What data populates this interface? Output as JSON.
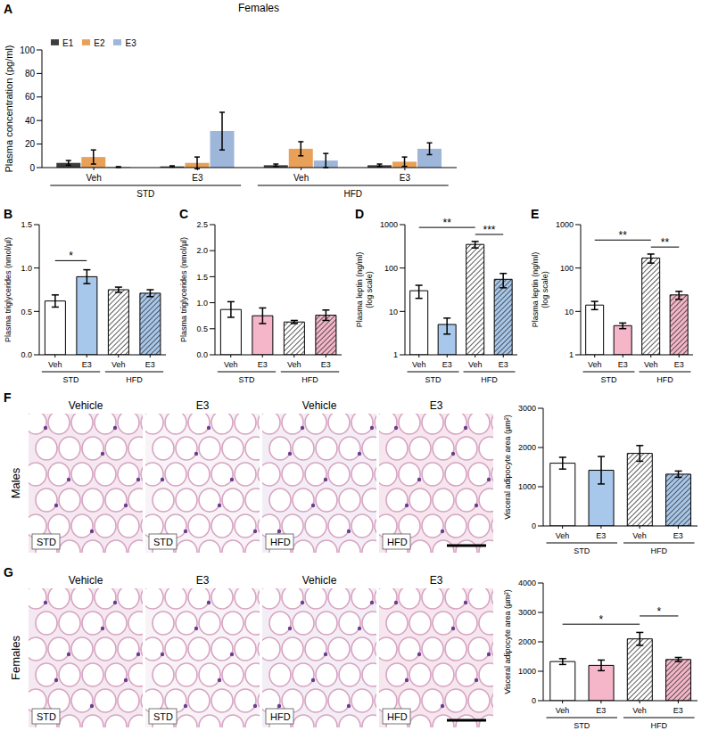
{
  "chart_data": [
    {
      "panel": "A",
      "type": "bar",
      "title": "Females",
      "categories": [
        "Veh",
        "E3",
        "Veh",
        "E3"
      ],
      "group_labels": [
        "STD",
        "STD",
        "HFD",
        "HFD"
      ],
      "y_label": [
        "Plasma concentration (pg/ml)"
      ],
      "ylim": [
        0,
        100
      ],
      "yticks": [
        0,
        20,
        40,
        60,
        80,
        100
      ],
      "legend": "top-left",
      "series": [
        {
          "name": "E1",
          "color": "#3d3d3d",
          "values": [
            4,
            1,
            2,
            2
          ],
          "errors": [
            2,
            0.5,
            1,
            1
          ]
        },
        {
          "name": "E2",
          "color": "#e9a15a",
          "values": [
            9,
            4,
            16,
            5
          ],
          "errors": [
            6,
            5,
            6,
            4
          ]
        },
        {
          "name": "E3",
          "color": "#9db6d9",
          "values": [
            0.5,
            31,
            6,
            16
          ],
          "errors": [
            0.3,
            16,
            6,
            5
          ]
        }
      ]
    },
    {
      "panel": "B",
      "type": "bar",
      "categories": [
        "Veh",
        "E3",
        "Veh",
        "E3"
      ],
      "group_labels": [
        "STD",
        "STD",
        "HFD",
        "HFD"
      ],
      "y_label": [
        "Plasma triglycerides (nmol/µl)"
      ],
      "ylim": [
        0,
        1.5
      ],
      "yticks": [
        {
          "value": 0,
          "label": "0.0"
        },
        0.5,
        {
          "value": 1,
          "label": "1.0"
        },
        1.5
      ],
      "values": [
        0.62,
        0.9,
        0.75,
        0.71
      ],
      "errors": [
        0.07,
        0.08,
        0.03,
        0.04
      ],
      "colors": [
        "#ffffff",
        "#a8c8eb",
        "#ffffff",
        "#a8c8eb"
      ],
      "annotations": [
        {
          "from": 0,
          "to": 1,
          "text": "*"
        }
      ]
    },
    {
      "panel": "C",
      "type": "bar",
      "categories": [
        "Veh",
        "E3",
        "Veh",
        "E3"
      ],
      "group_labels": [
        "STD",
        "STD",
        "HFD",
        "HFD"
      ],
      "y_label": [
        "Plasma triglycerides (nmol/µl)"
      ],
      "ylim": [
        0,
        2.5
      ],
      "yticks": [
        {
          "value": 0,
          "label": "0.0"
        },
        0.5,
        {
          "value": 1,
          "label": "1.0"
        },
        1.5,
        {
          "value": 2,
          "label": "2.0"
        },
        2.5
      ],
      "values": [
        0.87,
        0.75,
        0.63,
        0.76
      ],
      "errors": [
        0.15,
        0.15,
        0.03,
        0.1
      ],
      "colors": [
        "#ffffff",
        "#f4b6c8",
        "#ffffff",
        "#f4b6c8"
      ],
      "annotations": []
    },
    {
      "panel": "D",
      "type": "bar",
      "categories": [
        "Veh",
        "E3",
        "Veh",
        "E3"
      ],
      "group_labels": [
        "STD",
        "STD",
        "HFD",
        "HFD"
      ],
      "y_label": [
        "Plasma leptin (ng/ml)",
        "(log scale)"
      ],
      "log": "y",
      "ylim": [
        1,
        1000
      ],
      "yticks": [
        1,
        10,
        100,
        1000
      ],
      "values": [
        30,
        5,
        350,
        55
      ],
      "errors": [
        10,
        2,
        60,
        20
      ],
      "colors": [
        "#ffffff",
        "#a8c8eb",
        "#ffffff",
        "#a8c8eb"
      ],
      "annotations": [
        {
          "from": 2,
          "to": 3,
          "text": "***"
        },
        {
          "from": 0,
          "to": 2,
          "text": "**"
        }
      ]
    },
    {
      "panel": "E",
      "type": "bar",
      "categories": [
        "Veh",
        "E3",
        "Veh",
        "E3"
      ],
      "group_labels": [
        "STD",
        "STD",
        "HFD",
        "HFD"
      ],
      "y_label": [
        "Plasma leptin (ng/ml)",
        "(log scale)"
      ],
      "log": "y",
      "ylim": [
        1,
        1000
      ],
      "yticks": [
        1,
        10,
        100,
        1000
      ],
      "values": [
        14,
        4.7,
        170,
        24
      ],
      "errors": [
        3,
        0.7,
        40,
        5
      ],
      "colors": [
        "#ffffff",
        "#f4b6c8",
        "#ffffff",
        "#f4b6c8"
      ],
      "annotations": [
        {
          "from": 2,
          "to": 3,
          "text": "**"
        },
        {
          "from": 0,
          "to": 2,
          "text": "**"
        }
      ]
    },
    {
      "panel": "F",
      "type": "bar",
      "row_label": "Males",
      "images": [
        {
          "title": "Vehicle",
          "label": "STD"
        },
        {
          "title": "E3",
          "label": "STD"
        },
        {
          "title": "Vehicle",
          "label": "HFD"
        },
        {
          "title": "E3",
          "label": "HFD"
        }
      ],
      "categories": [
        "Veh",
        "E3",
        "Veh",
        "E3"
      ],
      "group_labels": [
        "STD",
        "STD",
        "HFD",
        "HFD"
      ],
      "y_label": [
        "Visceral adipocyte area (µm²)"
      ],
      "ylim": [
        0,
        3000
      ],
      "yticks": [
        0,
        1000,
        2000,
        3000
      ],
      "values": [
        1600,
        1420,
        1850,
        1320
      ],
      "errors": [
        150,
        350,
        200,
        80
      ],
      "colors": [
        "#ffffff",
        "#a8c8eb",
        "#ffffff",
        "#a8c8eb"
      ],
      "annotations": []
    },
    {
      "panel": "G",
      "type": "bar",
      "row_label": "Females",
      "images": [
        {
          "title": "Vehicle",
          "label": "STD"
        },
        {
          "title": "E3",
          "label": "STD"
        },
        {
          "title": "Vehicle",
          "label": "HFD"
        },
        {
          "title": "E3",
          "label": "HFD"
        }
      ],
      "categories": [
        "Veh",
        "E3",
        "Veh",
        "E3"
      ],
      "group_labels": [
        "STD",
        "STD",
        "HFD",
        "HFD"
      ],
      "y_label": [
        "Visceral adipocyte area (µm²)"
      ],
      "ylim": [
        0,
        4000
      ],
      "yticks": [
        0,
        1000,
        2000,
        3000,
        4000
      ],
      "values": [
        1330,
        1200,
        2100,
        1400
      ],
      "errors": [
        100,
        180,
        220,
        70
      ],
      "colors": [
        "#ffffff",
        "#f4b6c8",
        "#ffffff",
        "#f4b6c8"
      ],
      "annotations": [
        {
          "from": 0,
          "to": 2,
          "text": "*"
        },
        {
          "from": 2,
          "to": 3,
          "text": "*"
        }
      ]
    }
  ]
}
